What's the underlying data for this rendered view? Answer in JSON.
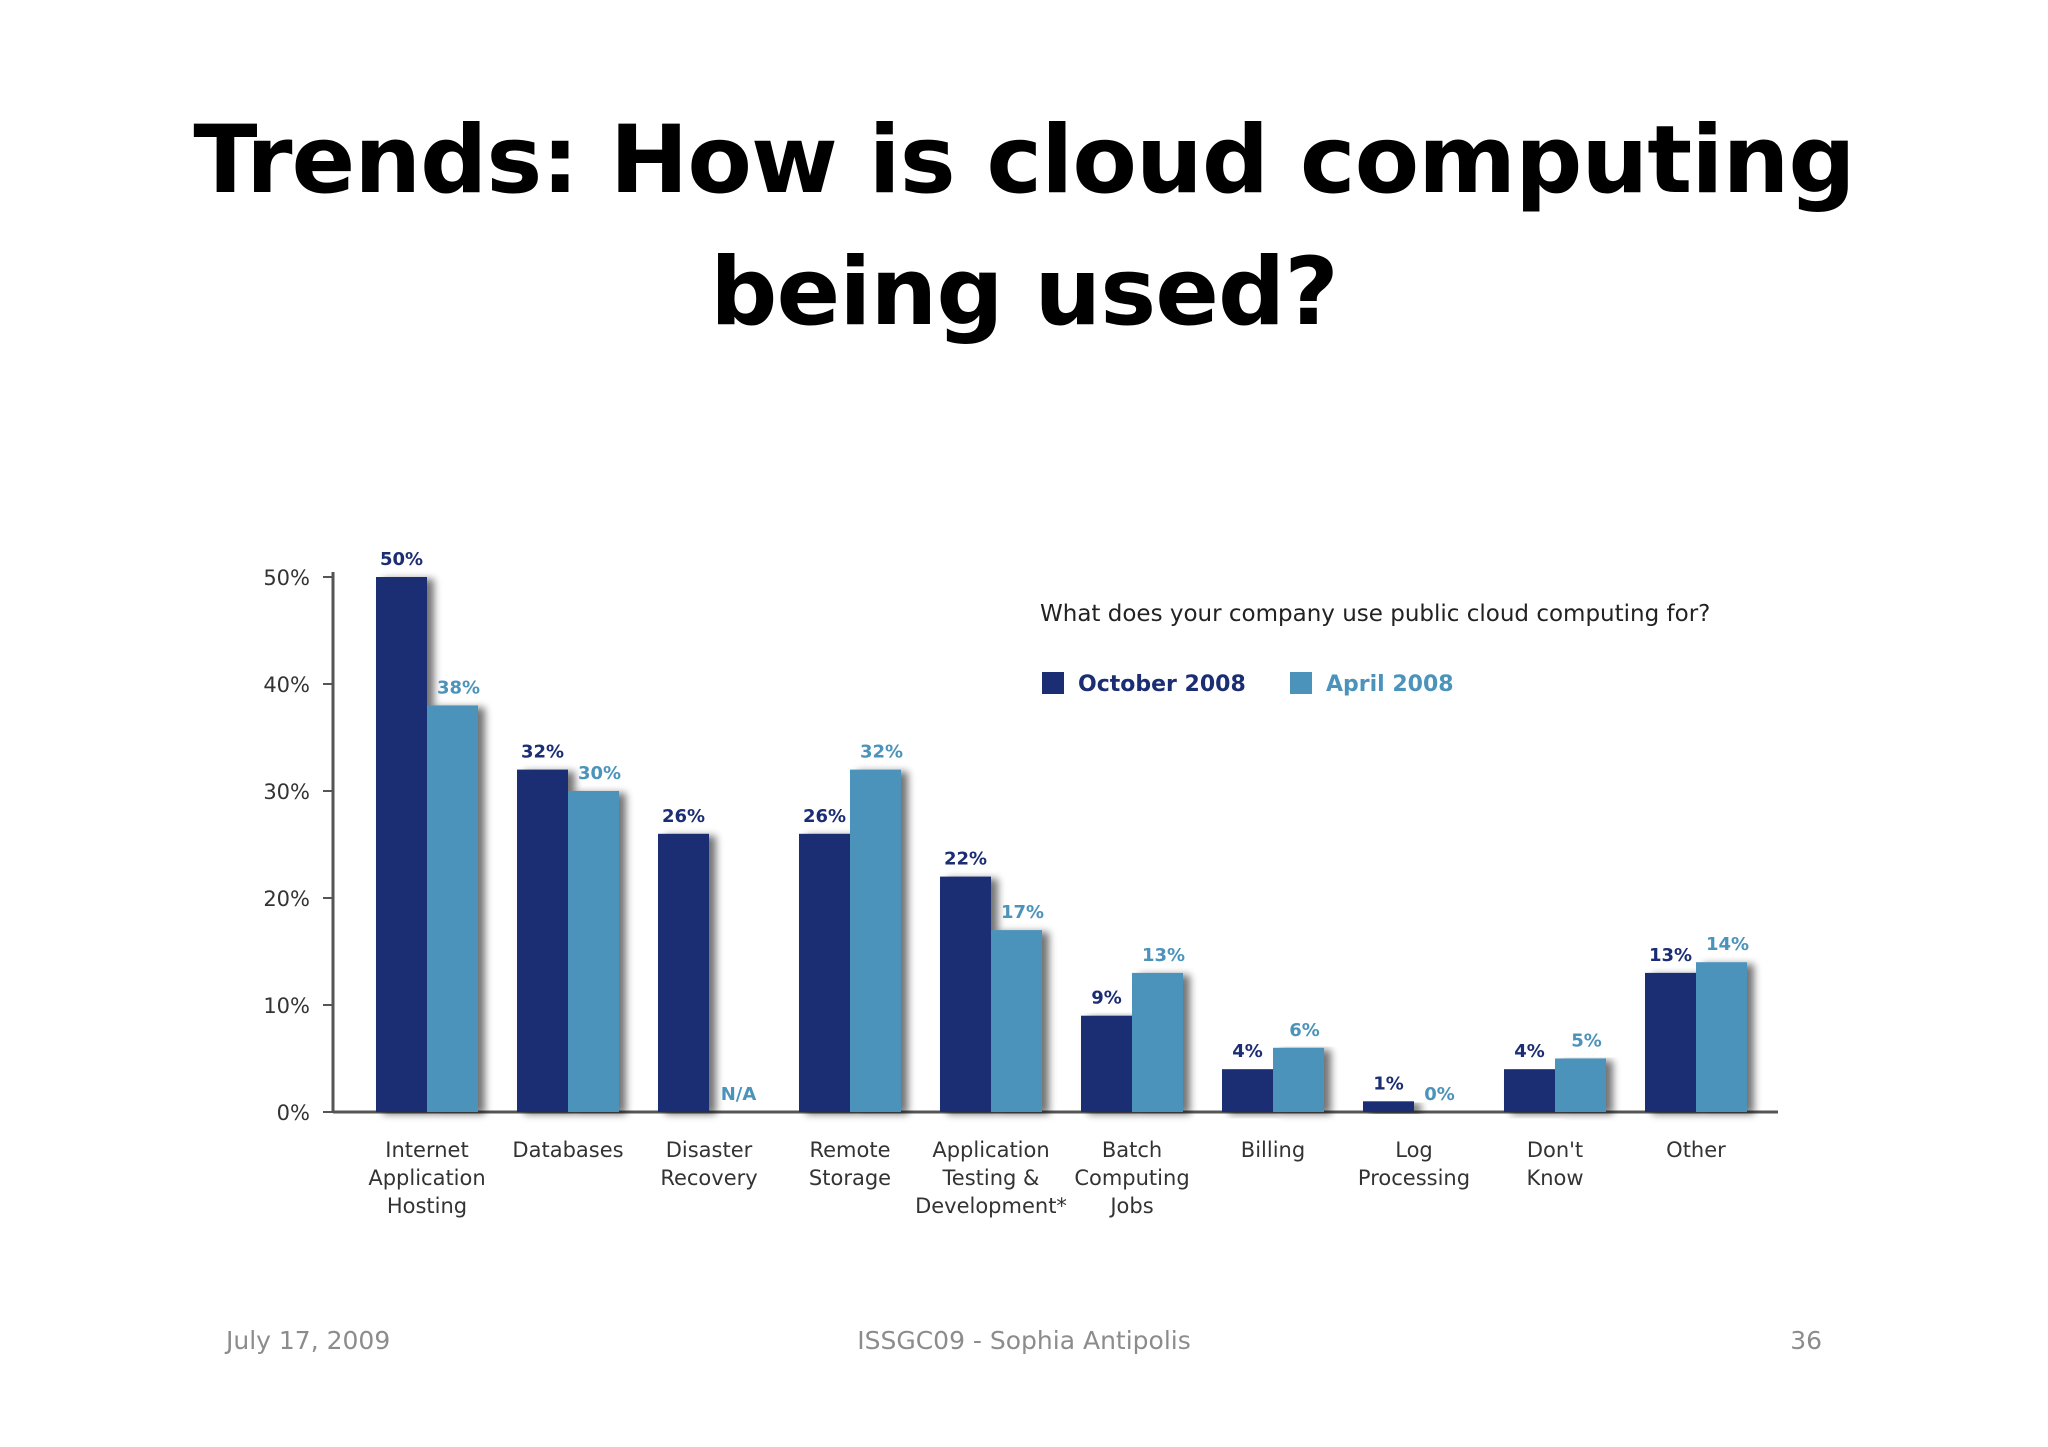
{
  "slide": {
    "title_line1": "Trends: How is cloud computing",
    "title_line2": "being used?"
  },
  "footer": {
    "date": "July 17, 2009",
    "event": "ISSGC09 - Sophia Antipolis",
    "page": "36"
  },
  "colors": {
    "october": "#1b2d73",
    "april": "#4b93bb",
    "axis": "#555555"
  },
  "chart_data": {
    "type": "bar",
    "title": "What does your company use public cloud computing for?",
    "categories": [
      [
        "Internet",
        "Application",
        "Hosting"
      ],
      [
        "Databases"
      ],
      [
        "Disaster",
        "Recovery"
      ],
      [
        "Remote",
        "Storage"
      ],
      [
        "Application",
        "Testing &",
        "Development*"
      ],
      [
        "Batch",
        "Computing",
        "Jobs"
      ],
      [
        "Billing"
      ],
      [
        "Log",
        "Processing"
      ],
      [
        "Don't",
        "Know"
      ],
      [
        "Other"
      ]
    ],
    "series": [
      {
        "name": "October 2008",
        "values": [
          50,
          32,
          26,
          26,
          22,
          9,
          4,
          1,
          4,
          13
        ],
        "labels": [
          "50%",
          "32%",
          "26%",
          "26%",
          "22%",
          "9%",
          "4%",
          "1%",
          "4%",
          "13%"
        ]
      },
      {
        "name": "April 2008",
        "values": [
          38,
          30,
          null,
          32,
          17,
          13,
          6,
          0,
          5,
          14
        ],
        "labels": [
          "38%",
          "30%",
          "N/A",
          "32%",
          "17%",
          "13%",
          "6%",
          "0%",
          "5%",
          "14%"
        ]
      }
    ],
    "yticks": [
      "0%",
      "10%",
      "20%",
      "30%",
      "40%",
      "50%"
    ],
    "ylim": [
      0,
      50
    ],
    "legend_position": "top-right",
    "grid": false
  }
}
